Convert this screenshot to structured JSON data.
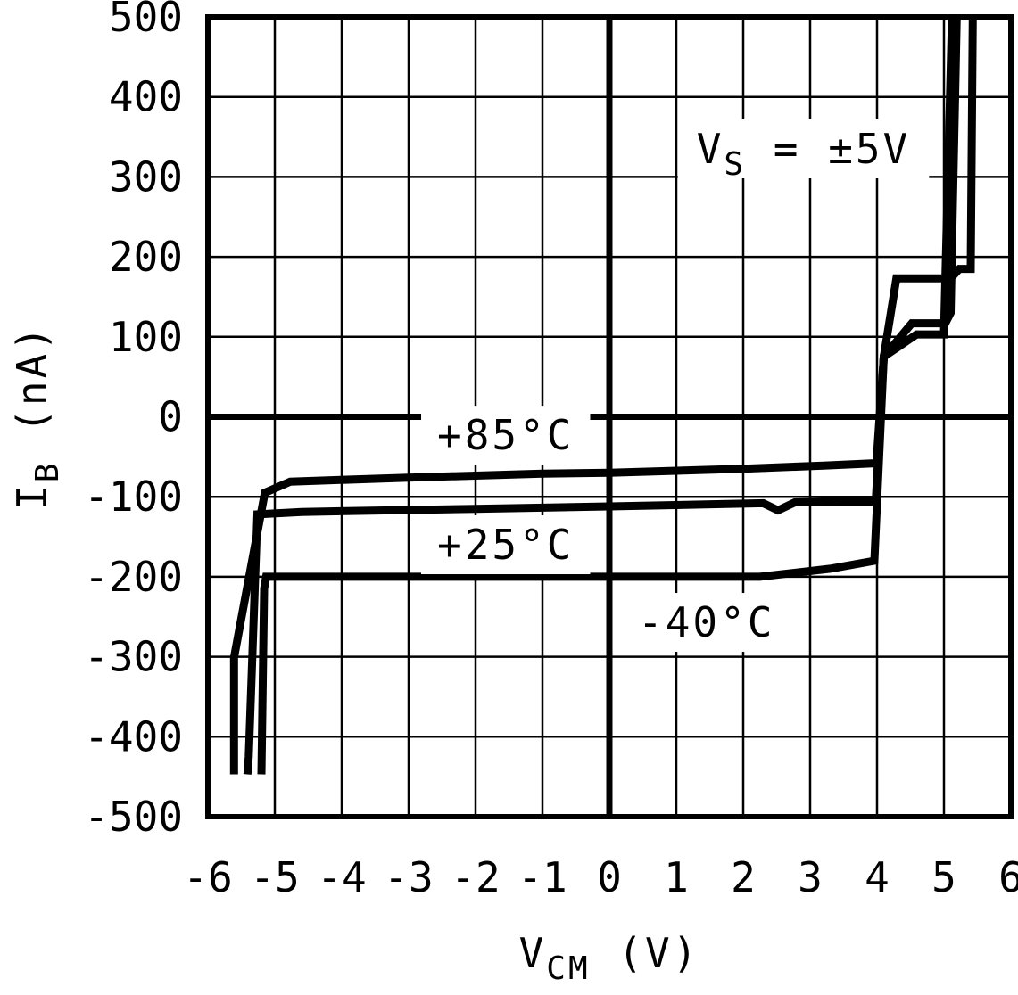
{
  "chart_data": {
    "type": "line",
    "title": "",
    "xlabel": "VCM (V)",
    "ylabel": "IB (nA)",
    "xlabel_parts": [
      {
        "t": "V"
      },
      {
        "t": "CM",
        "sub": true
      },
      {
        "t": " (V)"
      }
    ],
    "ylabel_parts": [
      {
        "t": "I"
      },
      {
        "t": "B",
        "sub": true
      },
      {
        "t": " (nA)"
      }
    ],
    "xlim": [
      -6,
      6
    ],
    "ylim": [
      -500,
      500
    ],
    "x_ticks": [
      -6,
      -5,
      -4,
      -3,
      -2,
      -1,
      0,
      1,
      2,
      3,
      4,
      5,
      6
    ],
    "x_tick_labels": [
      "-6",
      "-5",
      "-4",
      "-3",
      "-2",
      "-1",
      "0",
      "1",
      "2",
      "3",
      "4",
      "5",
      "6"
    ],
    "y_ticks": [
      500,
      400,
      300,
      200,
      100,
      0,
      -100,
      -200,
      -300,
      -400,
      -500
    ],
    "y_tick_labels": [
      "500",
      "400",
      "300",
      "200",
      "100",
      "0",
      "-100",
      "-200",
      "-300",
      "-400",
      "-500"
    ],
    "grid": true,
    "legend_position": "none",
    "annotation": {
      "text": "VS = ±5V",
      "parts": [
        {
          "t": "V"
        },
        {
          "t": "S",
          "sub": true
        },
        {
          "t": " = ±5V"
        }
      ],
      "x": 2.9,
      "y": 335
    },
    "series": [
      {
        "name": "+85°C",
        "points": [
          [
            -5.61,
            -447
          ],
          [
            -5.61,
            -301
          ],
          [
            -5.15,
            -95
          ],
          [
            -4.77,
            -81
          ],
          [
            -3.0,
            -76
          ],
          [
            -1.0,
            -71
          ],
          [
            0.0,
            -70
          ],
          [
            2.0,
            -65
          ],
          [
            3.2,
            -61
          ],
          [
            3.99,
            -58
          ],
          [
            4.1,
            75
          ],
          [
            4.29,
            173
          ],
          [
            5.1,
            173
          ],
          [
            5.23,
            185
          ],
          [
            5.4,
            185
          ],
          [
            5.43,
            500
          ]
        ]
      },
      {
        "name": "+25°C",
        "points": [
          [
            -5.41,
            -447
          ],
          [
            -5.39,
            -425
          ],
          [
            -5.26,
            -122
          ],
          [
            -4.6,
            -119
          ],
          [
            -2.0,
            -115
          ],
          [
            0.0,
            -112
          ],
          [
            2.3,
            -108
          ],
          [
            2.52,
            -117
          ],
          [
            2.77,
            -107
          ],
          [
            3.5,
            -106
          ],
          [
            3.98,
            -106
          ],
          [
            4.1,
            75
          ],
          [
            4.52,
            117
          ],
          [
            5.02,
            117
          ],
          [
            5.1,
            130
          ],
          [
            5.19,
            500
          ]
        ]
      },
      {
        "name": "-40°C",
        "points": [
          [
            -5.2,
            -447
          ],
          [
            -5.16,
            -215
          ],
          [
            -5.13,
            -200
          ],
          [
            -2.0,
            -200
          ],
          [
            0.0,
            -200
          ],
          [
            2.25,
            -200
          ],
          [
            3.3,
            -190
          ],
          [
            3.96,
            -180
          ],
          [
            4.1,
            75
          ],
          [
            4.59,
            103
          ],
          [
            5.0,
            103
          ],
          [
            5.12,
            500
          ]
        ]
      }
    ],
    "curve_labels": [
      {
        "text": "+85°C",
        "x": -1.55,
        "y": -23
      },
      {
        "text": "+25°C",
        "x": -1.55,
        "y": -160
      },
      {
        "text": "-40°C",
        "x": 1.45,
        "y": -257
      }
    ]
  },
  "colors": {
    "foreground": "#000000",
    "background": "#ffffff"
  }
}
